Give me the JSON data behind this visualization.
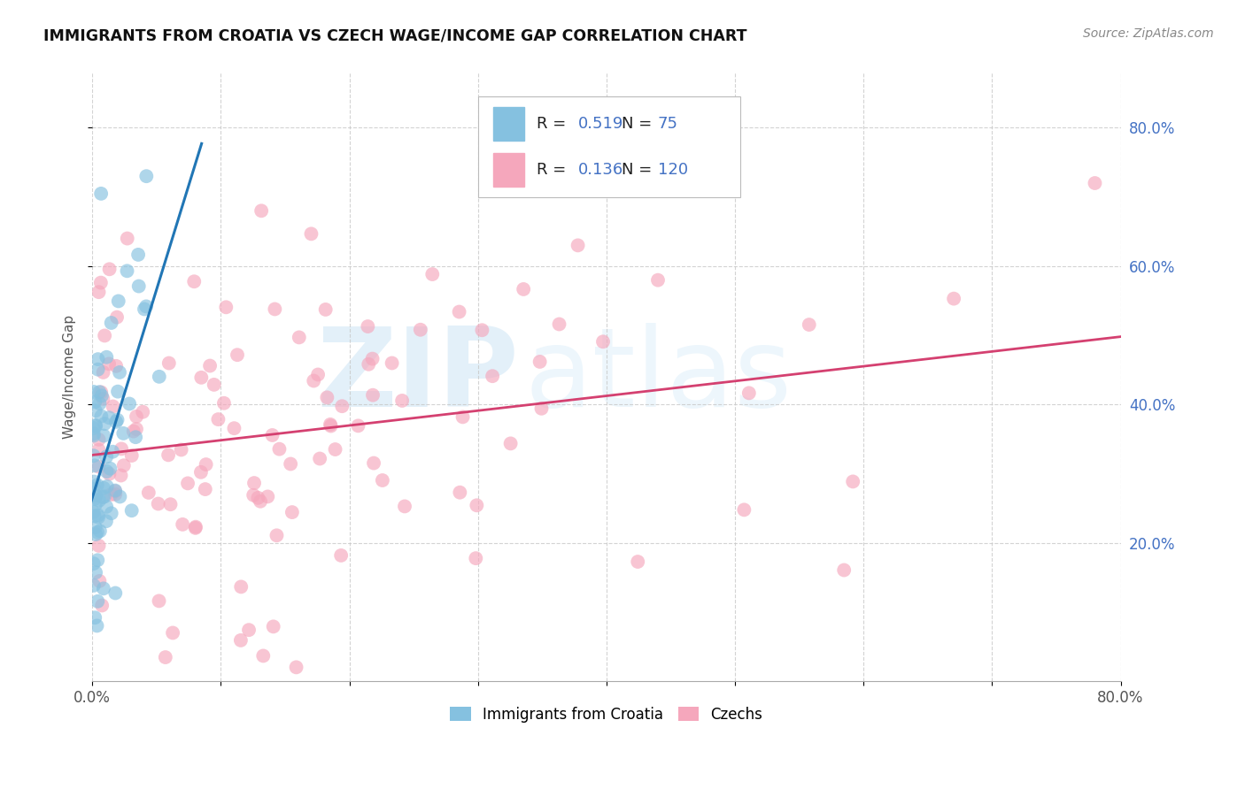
{
  "title": "IMMIGRANTS FROM CROATIA VS CZECH WAGE/INCOME GAP CORRELATION CHART",
  "source": "Source: ZipAtlas.com",
  "ylabel_label": "Wage/Income Gap",
  "legend_label1": "Immigrants from Croatia",
  "legend_label2": "Czechs",
  "R1": 0.519,
  "N1": 75,
  "R2": 0.136,
  "N2": 120,
  "color_blue": "#85c1e0",
  "color_blue_line": "#2176b5",
  "color_pink": "#f5a7bc",
  "color_pink_line": "#d44070",
  "background": "#ffffff",
  "grid_color": "#c8c8c8",
  "watermark_zip": "ZIP",
  "watermark_atlas": "atlas",
  "seed": 42,
  "xlim": [
    0.0,
    0.8
  ],
  "ylim": [
    0.0,
    0.88
  ],
  "yticks": [
    0.2,
    0.4,
    0.6,
    0.8
  ],
  "right_tick_color": "#4472c4",
  "title_fontsize": 12.5,
  "source_fontsize": 10,
  "tick_fontsize": 12
}
